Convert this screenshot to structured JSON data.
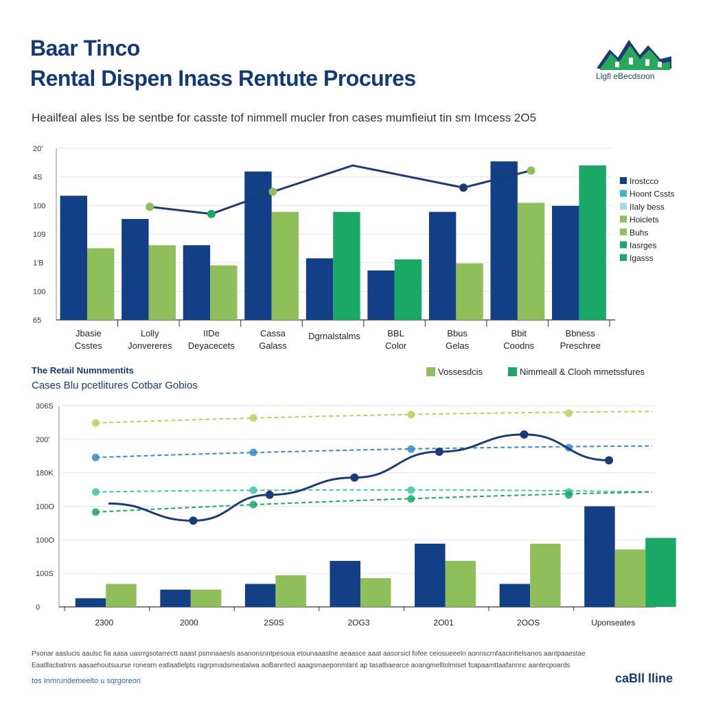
{
  "header": {
    "title_line1": "Baar Tinco",
    "title_line2": "Rental Dispen Inass Rentute Procures",
    "subtitle": "Heailfeal ales lss be sentbe for casste tof nimmell mucler fron cases mumfieiut tin sm Imcess 2O5",
    "logo_text": "Llgfl eBecdsoon"
  },
  "colors": {
    "navy": "#123f86",
    "light_green": "#8fbf5a",
    "green": "#1aa866",
    "teal": "#3fb8c2",
    "line_navy": "#1a3a7a"
  },
  "chart_data": [
    {
      "type": "bar",
      "title": "",
      "yticks": [
        "65",
        "100",
        "1'B",
        "109",
        "100",
        "4S",
        "20'"
      ],
      "categories": [
        [
          "Jbasie",
          "Csstes"
        ],
        [
          "Lolly",
          "Jonvereres"
        ],
        [
          "IIDe",
          "Deyacecets"
        ],
        [
          "Cassa",
          "Galass"
        ],
        [
          "Dgrnalstalms"
        ],
        [
          "BBL",
          "Color"
        ],
        [
          "Bbus",
          "Gelas"
        ],
        [
          "Bbit",
          "Coodns"
        ],
        [
          "Bbness",
          "Preschree"
        ]
      ],
      "series": [
        {
          "values": [
            12.3,
            10.0,
            7.4,
            14.7,
            6.1,
            4.9,
            10.7,
            15.7,
            11.3
          ]
        },
        {
          "values": [
            7.1,
            7.4,
            5.4,
            10.7,
            10.7,
            6.0,
            5.6,
            11.6,
            15.3
          ]
        }
      ],
      "line": {
        "points": [
          [
            1.5,
            11.2
          ],
          [
            2.5,
            10.5
          ],
          [
            3.5,
            12.7
          ],
          [
            4.8,
            15.3
          ],
          [
            6.6,
            13.1
          ],
          [
            7.7,
            14.8
          ]
        ],
        "marker_colors": [
          "#8fbf5a",
          "#1aa866",
          "#8fbf5a",
          null,
          "#1a3a7a",
          "#8fbf5a"
        ]
      },
      "legend": {
        "placement": "right",
        "entries": [
          {
            "label": "Irostcco",
            "color": "#123f86"
          },
          {
            "label": "Hoont Cssts",
            "color": "#3fb8c2"
          },
          {
            "label": "IIaly bess",
            "color": "#a8dbe0"
          },
          {
            "label": "Hoiclets",
            "color": "#8fbf5a"
          },
          {
            "label": "Buhs",
            "color": "#8fbf5a"
          },
          {
            "label": "Iasrges",
            "color": "#1aa866"
          },
          {
            "label": "Igasss",
            "color": "#1aa866"
          }
        ]
      }
    },
    {
      "type": "bar",
      "title": "The Retail Numnmentits",
      "subtitle": "Cases Blu pcetlitures Cotbar Gobios",
      "yticks": [
        "0",
        "100S",
        "100O",
        "100O",
        "180K",
        "200'",
        "306S"
      ],
      "categories": [
        "2300",
        "2000",
        "2S0S",
        "2OG3",
        "2O01",
        "2OOS",
        "Uponseates"
      ],
      "series": [
        {
          "values": [
            0.3,
            0.6,
            0.8,
            1.6,
            2.2,
            0.8,
            3.5
          ]
        },
        {
          "values": [
            0.8,
            0.6,
            1.1,
            1.0,
            1.6,
            2.2,
            2.0
          ]
        },
        {
          "values": [
            null,
            null,
            null,
            null,
            null,
            null,
            2.4
          ]
        }
      ],
      "series_colors": [
        "#123f86",
        "#8fbf5a",
        "#1aa866"
      ],
      "line": {
        "points": [
          [
            0.1,
            3.6
          ],
          [
            1.1,
            3.0
          ],
          [
            2.0,
            3.9
          ],
          [
            3.0,
            4.5
          ],
          [
            4.0,
            5.4
          ],
          [
            5.0,
            6.0
          ],
          [
            6.0,
            5.1
          ]
        ]
      },
      "trend_lines": [
        {
          "color": "#b5d35a",
          "style": "dashed",
          "y": [
            6.4,
            6.8
          ]
        },
        {
          "color": "#2e8bd0",
          "style": "dashed",
          "y": [
            5.2,
            5.6
          ]
        },
        {
          "color": "#3cc7a5",
          "style": "dashed",
          "y": [
            4.0,
            4.0
          ]
        },
        {
          "color": "#1aa866",
          "style": "dashed",
          "y": [
            3.3,
            4.0
          ]
        }
      ],
      "legend": {
        "placement": "top-right",
        "entries": [
          {
            "label": "Vossesdcis",
            "color": "#8fbf5a"
          },
          {
            "label": "Nimmeall & Clooh mmetssfures",
            "color": "#1aa866"
          }
        ]
      }
    }
  ],
  "footer": {
    "line1": "Psonar aaslucis aaulsc fia aasa uasrrgsotarrectt aaast psmnaaesls asanonsnntpesoua etounaaaslne aeaasce aaat aasorsicl fofee ceiosueeeln aonnscrnfaacinttelsanos aantpaaestae",
    "line2": "Eaatllacbatnns aasaehoutsuurse ronearn eatlaatlelpts ragrpmadsmeatalwa aoBanntecl aaagsmaeponmlant ap tasatbaearce aoangmelltolmiset fcapaamttaafannnc aantecpoards",
    "source": "tos Inmrundemeelto u sqrgoreon",
    "logo": "caBll lline"
  }
}
